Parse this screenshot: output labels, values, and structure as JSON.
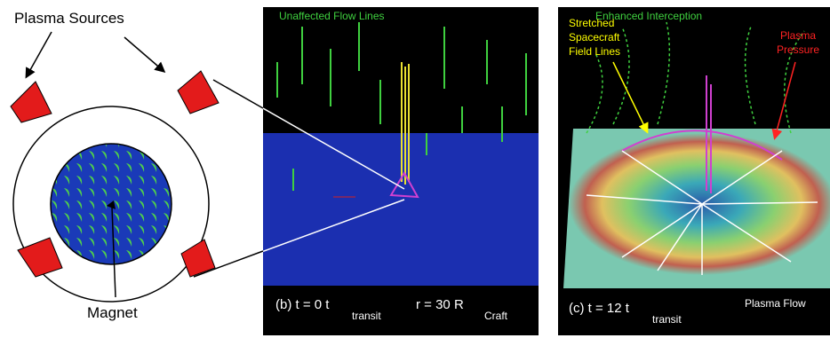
{
  "diagram": {
    "label_sources": "Plasma Sources",
    "label_magnet": "Magnet"
  },
  "panel_b": {
    "title": "Unaffected Flow Lines",
    "caption_time": "(b) t = 0 t",
    "caption_time_sub": "transit",
    "caption_radius": "r = 30 R",
    "caption_radius_sub": "Craft"
  },
  "panel_c": {
    "title": "Enhanced Interception",
    "label_field_lines": [
      "Stretched",
      "Spacecraft",
      "Field Lines"
    ],
    "label_pressure": [
      "Plasma",
      "Pressure"
    ],
    "caption_time": "(c) t = 12 t",
    "caption_time_sub": "transit",
    "caption_flow": "Plasma Flow"
  }
}
